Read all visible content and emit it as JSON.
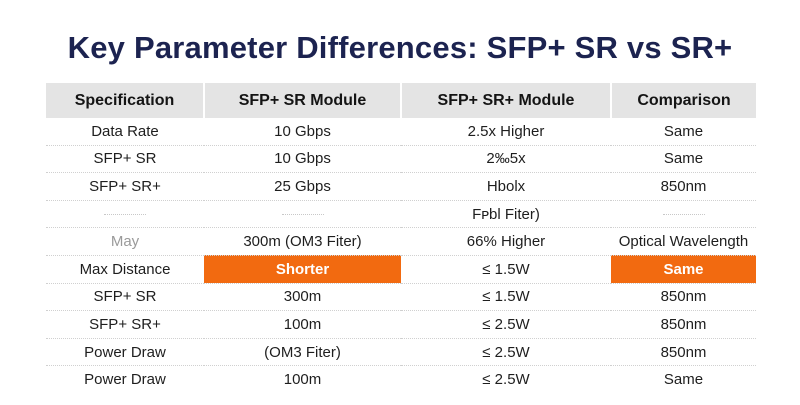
{
  "title": "Key Parameter Differences: SFP+ SR vs SR+",
  "colors": {
    "title": "#1c2350",
    "header_bg": "#e4e4e4",
    "highlight": "#f26a10"
  },
  "table": {
    "headers": [
      "Specification",
      "SFP+ SR Module",
      "SFP+ SR+ Module",
      "Comparison"
    ],
    "rows": [
      [
        "Data Rate",
        "10 Gbps",
        "2.5x Higher",
        "Same"
      ],
      [
        "SFP+ SR",
        "10 Gbps",
        "2‰5x",
        "Same"
      ],
      [
        "SFP+ SR+",
        "25 Gbps",
        "Hbolx",
        "850nm"
      ],
      [
        "",
        "",
        "Fᴩbl Fiter)",
        ""
      ],
      [
        "May",
        "300m (OM3 Fiter)",
        "66% Higher",
        "Optical Wavelength"
      ],
      [
        "Max Distance",
        "Shorter",
        "≤ 1.5W",
        "Same"
      ],
      [
        "SFP+ SR",
        "300m",
        "≤ 1.5W",
        "850nm"
      ],
      [
        "SFP+ SR+",
        "100m",
        "≤ 2.5W",
        "850nm"
      ],
      [
        "Power Draw",
        "(OM3 Fiter)",
        "≤ 2.5W",
        "850nm"
      ],
      [
        "Power Draw",
        "100m",
        "≤ 2.5W",
        "Same"
      ]
    ]
  }
}
